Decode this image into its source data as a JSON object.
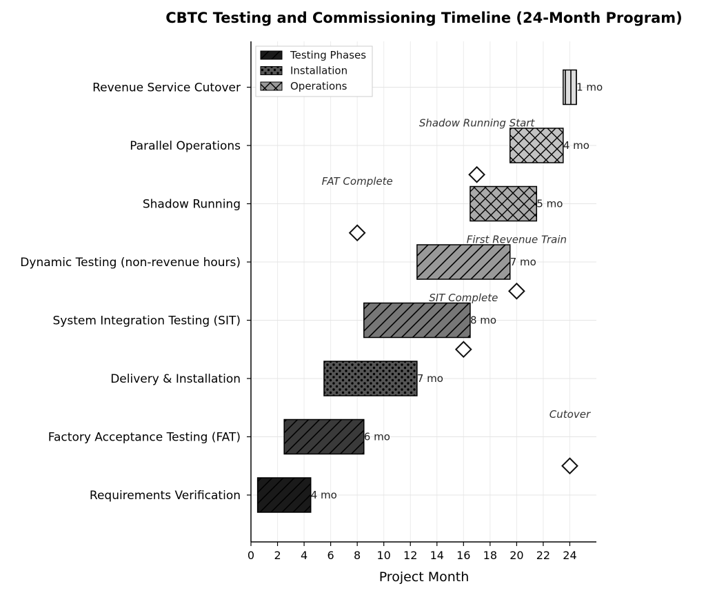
{
  "chart_data": {
    "type": "gantt",
    "title": "CBTC Testing and Commissioning Timeline (24-Month Program)",
    "xlabel": "Project Month",
    "ylabel": "",
    "xlim": [
      0,
      26
    ],
    "xticks": [
      0,
      2,
      4,
      6,
      8,
      10,
      12,
      14,
      16,
      18,
      20,
      22,
      24
    ],
    "grid": true,
    "legend": {
      "position": "top-left",
      "entries": [
        {
          "label": "Testing Phases",
          "color": "#1a1a1a",
          "pattern": "diagonal"
        },
        {
          "label": "Installation",
          "color": "#555555",
          "pattern": "dots"
        },
        {
          "label": "Operations",
          "color": "#999999",
          "pattern": "crosshatch"
        }
      ]
    },
    "tasks": [
      {
        "name": "Requirements Verification",
        "start": 0.5,
        "duration": 4,
        "label": "4 mo",
        "color": "#1a1a1a",
        "pattern": "diagonal"
      },
      {
        "name": "Factory Acceptance Testing (FAT)",
        "start": 2.5,
        "duration": 6,
        "label": "6 mo",
        "color": "#3a3a3a",
        "pattern": "diagonal"
      },
      {
        "name": "Delivery & Installation",
        "start": 5.5,
        "duration": 7,
        "label": "7 mo",
        "color": "#555555",
        "pattern": "dots"
      },
      {
        "name": "System Integration Testing (SIT)",
        "start": 8.5,
        "duration": 8,
        "label": "8 mo",
        "color": "#777777",
        "pattern": "diagonal"
      },
      {
        "name": "Dynamic Testing (non-revenue hours)",
        "start": 12.5,
        "duration": 7,
        "label": "7 mo",
        "color": "#999999",
        "pattern": "diagonal"
      },
      {
        "name": "Shadow Running",
        "start": 16.5,
        "duration": 5,
        "label": "5 mo",
        "color": "#aaaaaa",
        "pattern": "crosshatch"
      },
      {
        "name": "Parallel Operations",
        "start": 19.5,
        "duration": 4,
        "label": "4 mo",
        "color": "#c2c2c2",
        "pattern": "crosshatch"
      },
      {
        "name": "Revenue Service Cutover",
        "start": 23.5,
        "duration": 1,
        "label": "1 mo",
        "color": "#dddddd",
        "pattern": "vertical"
      }
    ],
    "milestones": [
      {
        "label": "FAT Complete",
        "month": 8,
        "row": 4.5
      },
      {
        "label": "SIT Complete",
        "month": 16,
        "row": 2.5
      },
      {
        "label": "First Revenue Train",
        "month": 20,
        "row": 3.5
      },
      {
        "label": "Shadow Running Start",
        "month": 17,
        "row": 5.5
      },
      {
        "label": "Cutover",
        "month": 24,
        "row": 0.5
      }
    ]
  }
}
